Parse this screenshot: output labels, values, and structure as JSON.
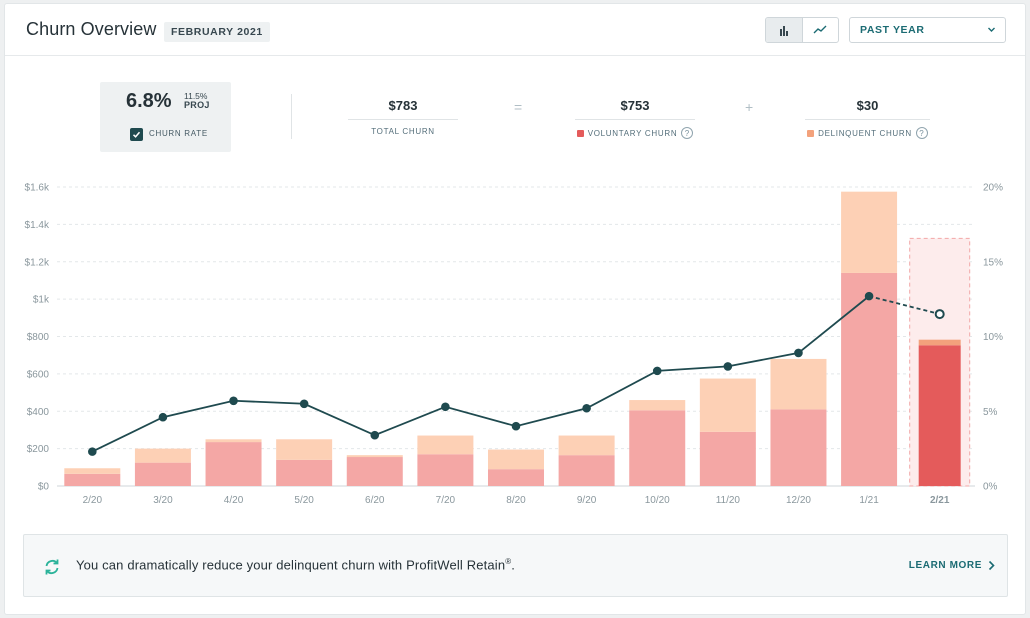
{
  "header": {
    "title": "Churn Overview",
    "date_badge": "FEBRUARY 2021",
    "view_toggle": {
      "bar_icon": "bar-chart-icon",
      "line_icon": "line-chart-icon",
      "active": "bar"
    },
    "period": {
      "selected": "PAST YEAR",
      "icon": "chevron-down-icon"
    }
  },
  "summary": {
    "churn_rate": "6.8%",
    "proj_value": "11.5%",
    "proj_label": "PROJ",
    "checkbox_label": "CHURN RATE",
    "checked": true,
    "total": {
      "value": "$783",
      "label": "TOTAL CHURN"
    },
    "equals": "=",
    "plus": "+",
    "voluntary": {
      "value": "$753",
      "label": "VOLUNTARY CHURN",
      "color": "#e45b5b"
    },
    "delinquent": {
      "value": "$30",
      "label": "DELINQUENT CHURN",
      "color": "#f3a27c"
    },
    "help_glyph": "?"
  },
  "chart_data": {
    "type": "bar",
    "stacked": true,
    "categories": [
      "2/20",
      "3/20",
      "4/20",
      "5/20",
      "6/20",
      "7/20",
      "8/20",
      "9/20",
      "10/20",
      "11/20",
      "12/20",
      "1/21",
      "2/21"
    ],
    "series": [
      {
        "name": "Voluntary churn",
        "values": [
          65,
          125,
          235,
          140,
          155,
          170,
          90,
          165,
          405,
          290,
          410,
          1140,
          753
        ],
        "color": "#f4a7a5",
        "current_color": "#e45b5b"
      },
      {
        "name": "Delinquent churn",
        "values": [
          30,
          75,
          15,
          110,
          10,
          100,
          105,
          105,
          55,
          285,
          270,
          435,
          30
        ],
        "color": "#fdd0b5",
        "current_color": "#f3a27c"
      },
      {
        "name": "Churn rate",
        "values": [
          2.3,
          4.6,
          5.7,
          5.5,
          3.4,
          5.3,
          4.0,
          5.2,
          7.7,
          8.0,
          8.9,
          12.7,
          11.5
        ],
        "color": "#1f4a4f",
        "axis": "right"
      }
    ],
    "projected_total": 1325,
    "y_left": {
      "ticks": [
        "$0",
        "$200",
        "$400",
        "$600",
        "$800",
        "$1k",
        "$1.2k",
        "$1.4k",
        "$1.6k"
      ],
      "range": [
        0,
        1600
      ]
    },
    "y_right": {
      "ticks": [
        "0%",
        "5%",
        "10%",
        "15%",
        "20%"
      ],
      "range": [
        0,
        20
      ]
    },
    "grid": true,
    "current_index": 12
  },
  "banner": {
    "icon": "refresh-icon",
    "text": "You can dramatically reduce your delinquent churn with ProfitWell Retain",
    "mark": "®",
    "end": ".",
    "cta": "LEARN MORE",
    "cta_icon": "chevron-right-icon"
  }
}
